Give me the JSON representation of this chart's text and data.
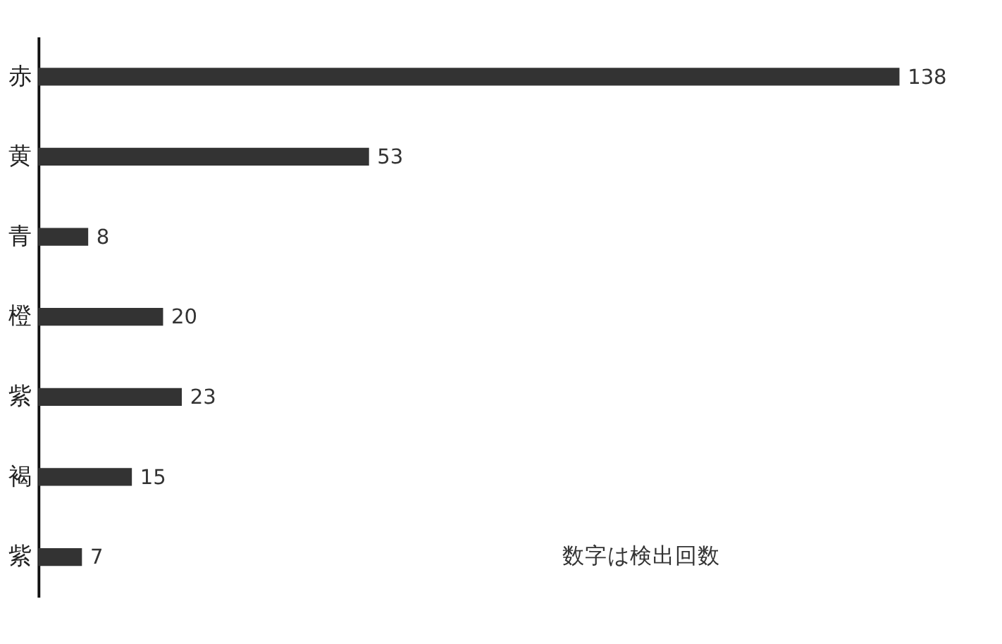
{
  "chart_data": {
    "type": "bar",
    "orientation": "horizontal",
    "categories": [
      "赤",
      "黄",
      "青",
      "橙",
      "紫",
      "褐",
      "紫"
    ],
    "values": [
      138,
      53,
      8,
      20,
      23,
      15,
      7
    ],
    "color": "#333333",
    "data_labels": true,
    "annotations": [
      "数字は検出回数"
    ]
  }
}
